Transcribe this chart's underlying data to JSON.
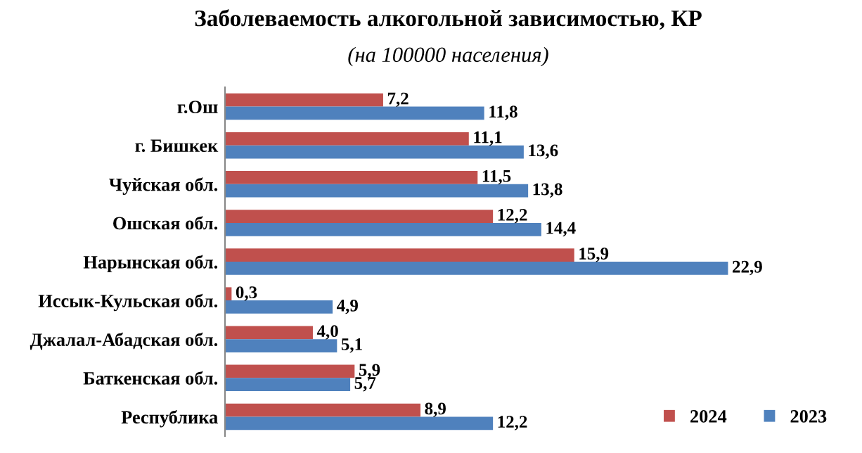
{
  "chart_data": {
    "type": "bar",
    "orientation": "horizontal",
    "title": "Заболеваемость алкогольной зависимостью, КР",
    "subtitle": "(на 100000 населения)",
    "categories": [
      "г.Ош",
      "г. Бишкек",
      "Чуйская обл.",
      "Ошская обл.",
      "Нарынская обл.",
      "Иссык-Кульская обл.",
      "Джалал-Абадская обл.",
      "Баткенская обл.",
      "Республика"
    ],
    "series": [
      {
        "name": "2024",
        "color": "#c0504d",
        "values": [
          7.2,
          11.1,
          11.5,
          12.2,
          15.9,
          0.3,
          4.0,
          5.9,
          8.9
        ],
        "value_labels": [
          "7,2",
          "11,1",
          "11,5",
          "12,2",
          "15,9",
          "0,3",
          "4,0",
          "5,9",
          "8,9"
        ]
      },
      {
        "name": "2023",
        "color": "#4f81bd",
        "values": [
          11.8,
          13.6,
          13.8,
          14.4,
          22.9,
          4.9,
          5.1,
          5.7,
          12.2
        ],
        "value_labels": [
          "11,8",
          "13,6",
          "13,8",
          "14,4",
          "22,9",
          "4,9",
          "5,1",
          "5,7",
          "12,2"
        ]
      }
    ],
    "legend": "bottom right",
    "grid": false
  }
}
